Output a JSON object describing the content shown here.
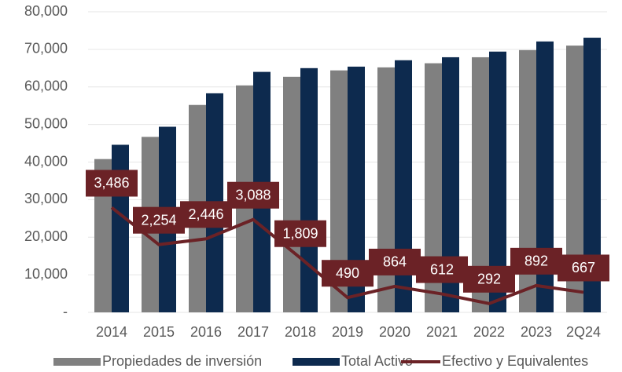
{
  "chart_data": {
    "type": "bar",
    "categories": [
      "2014",
      "2015",
      "2016",
      "2017",
      "2018",
      "2019",
      "2020",
      "2021",
      "2022",
      "2023",
      "2Q24"
    ],
    "series": [
      {
        "name": "Propiedades de inversión",
        "color": "#808080",
        "values": [
          40800,
          46700,
          55200,
          60400,
          62700,
          64400,
          65200,
          66300,
          67900,
          69800,
          71000
        ]
      },
      {
        "name": "Total Activo",
        "color": "#0d2a4e",
        "values": [
          44600,
          49400,
          58300,
          64000,
          65000,
          65400,
          67100,
          67900,
          69400,
          72100,
          73100
        ]
      },
      {
        "name": "Efectivo y Equivalentes",
        "color": "#6b2226",
        "type": "line",
        "axis": "y2",
        "values": [
          3486,
          2254,
          2446,
          3088,
          1809,
          490,
          864,
          612,
          292,
          892,
          667
        ],
        "value_labels": [
          "3,486",
          "2,254",
          "2,446",
          "3,088",
          "1,809",
          "490",
          "864",
          "612",
          "292",
          "892",
          "667"
        ]
      }
    ],
    "ylim": [
      0,
      80000
    ],
    "yticks": [
      {
        "value": 0,
        "label": "-"
      },
      {
        "value": 10000,
        "label": "10,000"
      },
      {
        "value": 20000,
        "label": "20,000"
      },
      {
        "value": 30000,
        "label": "30,000"
      },
      {
        "value": 40000,
        "label": "40,000"
      },
      {
        "value": 50000,
        "label": "50,000"
      },
      {
        "value": 60000,
        "label": "60,000"
      },
      {
        "value": 70000,
        "label": "70,000"
      },
      {
        "value": 80000,
        "label": "80,000"
      }
    ],
    "y2lim": [
      0,
      10000
    ],
    "grid": true,
    "legend": "bottom"
  }
}
